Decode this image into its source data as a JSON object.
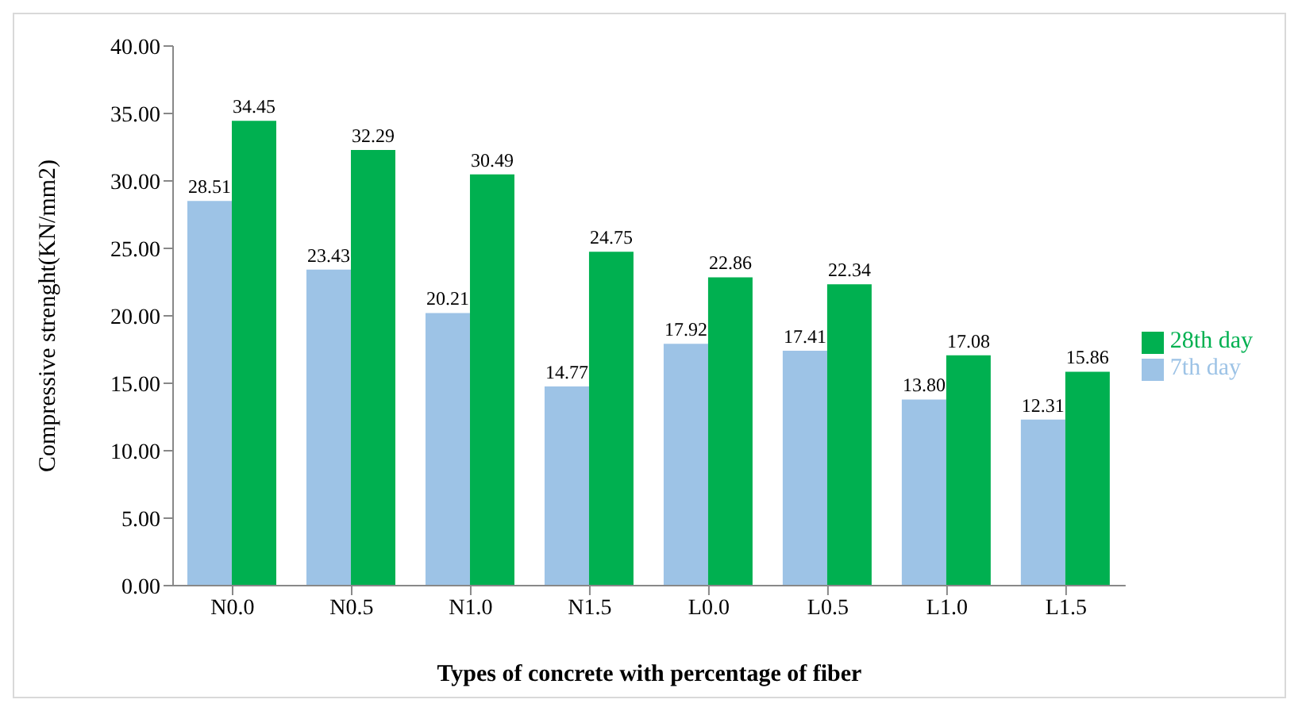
{
  "chart_data": {
    "type": "bar",
    "xlabel": "Types of concrete with percentage of fiber",
    "ylabel": "Compressive strenght(KN/mm2)",
    "categories": [
      "N0.0",
      "N0.5",
      "N1.0",
      "N1.5",
      "L0.0",
      "L0.5",
      "L1.0",
      "L1.5"
    ],
    "series": [
      {
        "name": "7th day",
        "color": "#9dc3e6",
        "values": [
          28.51,
          23.43,
          20.21,
          14.77,
          17.92,
          17.41,
          13.8,
          12.31
        ],
        "value_labels": [
          "28.51",
          "23.43",
          "20.21",
          "14.77",
          "17.92",
          "17.41",
          "13.80",
          "12.31"
        ]
      },
      {
        "name": "28th day",
        "color": "#00b050",
        "values": [
          34.45,
          32.29,
          30.49,
          24.75,
          22.86,
          22.34,
          17.08,
          15.86
        ],
        "value_labels": [
          "34.45",
          "32.29",
          "30.49",
          "24.75",
          "22.86",
          "22.34",
          "17.08",
          "15.86"
        ]
      }
    ],
    "ylim": [
      0,
      40
    ],
    "yticks": [
      {
        "value": 0,
        "label": "0.00"
      },
      {
        "value": 5,
        "label": "5.00"
      },
      {
        "value": 10,
        "label": "10.00"
      },
      {
        "value": 15,
        "label": "15.00"
      },
      {
        "value": 20,
        "label": "20.00"
      },
      {
        "value": 25,
        "label": "25.00"
      },
      {
        "value": 30,
        "label": "30.00"
      },
      {
        "value": 35,
        "label": "35.00"
      },
      {
        "value": 40,
        "label": "40.00"
      }
    ],
    "grid": false,
    "legend": "right"
  }
}
